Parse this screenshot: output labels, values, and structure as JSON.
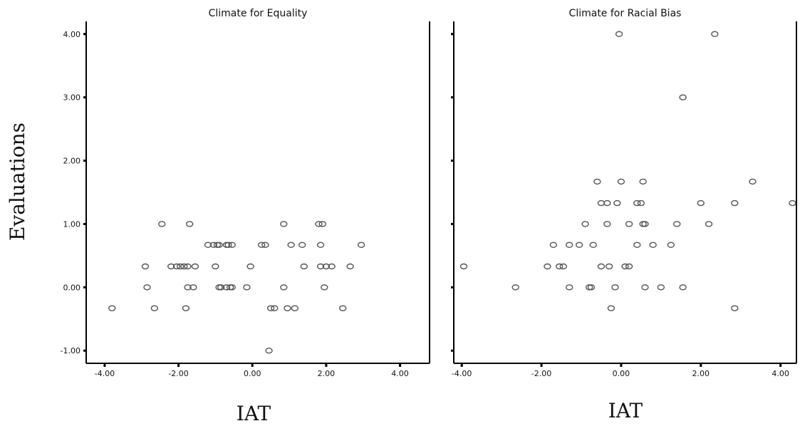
{
  "y_axis_title": "Evaluations",
  "x_axis_title": "IAT",
  "chart_data": [
    {
      "type": "scatter",
      "title": "Climate for Equality",
      "xlabel": "IAT",
      "ylabel": "Evaluations",
      "xlim": [
        -4.5,
        4.8
      ],
      "ylim": [
        -1.2,
        4.2
      ],
      "x_ticks": [
        -4,
        -2,
        0,
        2,
        4
      ],
      "y_ticks": [
        -1,
        0,
        1,
        2,
        3,
        4
      ],
      "x_tick_labels": [
        "-4.00",
        "-2.00",
        "0.00",
        "2.00",
        "4.00"
      ],
      "y_tick_labels": [
        "-1.00",
        "0.00",
        "1.00",
        "2.00",
        "3.00",
        "4.00"
      ],
      "points": [
        [
          -3.8,
          -0.33
        ],
        [
          -2.9,
          0.33
        ],
        [
          -2.85,
          0.0
        ],
        [
          -2.65,
          -0.33
        ],
        [
          -2.45,
          1.0
        ],
        [
          -2.2,
          0.33
        ],
        [
          -2.05,
          0.33
        ],
        [
          -1.95,
          0.33
        ],
        [
          -1.85,
          0.33
        ],
        [
          -1.8,
          -0.33
        ],
        [
          -1.75,
          0.33
        ],
        [
          -1.75,
          0.0
        ],
        [
          -1.7,
          1.0
        ],
        [
          -1.6,
          0.0
        ],
        [
          -1.55,
          0.33
        ],
        [
          -1.2,
          0.67
        ],
        [
          -1.05,
          0.67
        ],
        [
          -1.0,
          0.33
        ],
        [
          -0.95,
          0.67
        ],
        [
          -0.9,
          0.67
        ],
        [
          -0.9,
          0.0
        ],
        [
          -0.85,
          0.0
        ],
        [
          -0.7,
          0.67
        ],
        [
          -0.7,
          0.0
        ],
        [
          -0.65,
          0.67
        ],
        [
          -0.6,
          0.0
        ],
        [
          -0.55,
          0.67
        ],
        [
          -0.55,
          0.0
        ],
        [
          -0.15,
          0.0
        ],
        [
          -0.05,
          0.33
        ],
        [
          0.25,
          0.67
        ],
        [
          0.35,
          0.67
        ],
        [
          0.45,
          -1.0
        ],
        [
          0.5,
          -0.33
        ],
        [
          0.6,
          -0.33
        ],
        [
          0.85,
          1.0
        ],
        [
          0.85,
          0.0
        ],
        [
          0.95,
          -0.33
        ],
        [
          1.05,
          0.67
        ],
        [
          1.15,
          -0.33
        ],
        [
          1.35,
          0.67
        ],
        [
          1.4,
          0.33
        ],
        [
          1.8,
          1.0
        ],
        [
          1.85,
          0.67
        ],
        [
          1.85,
          0.33
        ],
        [
          1.9,
          1.0
        ],
        [
          1.95,
          0.0
        ],
        [
          2.0,
          0.33
        ],
        [
          2.15,
          0.33
        ],
        [
          2.45,
          -0.33
        ],
        [
          2.65,
          0.33
        ],
        [
          2.95,
          0.67
        ]
      ]
    },
    {
      "type": "scatter",
      "title": "Climate for Racial Bias",
      "xlabel": "IAT",
      "ylabel": "",
      "xlim": [
        -4.2,
        4.4
      ],
      "ylim": [
        -1.2,
        4.2
      ],
      "x_ticks": [
        -4,
        -2,
        0,
        2,
        4
      ],
      "y_ticks": [
        -1,
        0,
        1,
        2,
        3,
        4
      ],
      "x_tick_labels": [
        "-4.00",
        "-2.00",
        "0.00",
        "2.00",
        "4.00"
      ],
      "y_tick_labels": [
        "",
        "",
        "",
        "",
        "",
        ""
      ],
      "points": [
        [
          -3.95,
          0.33
        ],
        [
          -2.65,
          0.0
        ],
        [
          -1.85,
          0.33
        ],
        [
          -1.7,
          0.67
        ],
        [
          -1.55,
          0.33
        ],
        [
          -1.45,
          0.33
        ],
        [
          -1.3,
          0.67
        ],
        [
          -1.3,
          0.0
        ],
        [
          -1.05,
          0.67
        ],
        [
          -0.9,
          1.0
        ],
        [
          -0.8,
          0.0
        ],
        [
          -0.75,
          0.0
        ],
        [
          -0.7,
          0.67
        ],
        [
          -0.6,
          1.67
        ],
        [
          -0.5,
          1.33
        ],
        [
          -0.5,
          0.33
        ],
        [
          -0.35,
          1.33
        ],
        [
          -0.35,
          1.0
        ],
        [
          -0.3,
          0.33
        ],
        [
          -0.25,
          -0.33
        ],
        [
          -0.15,
          0.0
        ],
        [
          -0.1,
          1.33
        ],
        [
          -0.05,
          4.0
        ],
        [
          0.0,
          1.67
        ],
        [
          0.1,
          0.33
        ],
        [
          0.2,
          1.0
        ],
        [
          0.2,
          0.33
        ],
        [
          0.4,
          1.33
        ],
        [
          0.4,
          0.67
        ],
        [
          0.5,
          1.33
        ],
        [
          0.55,
          1.67
        ],
        [
          0.55,
          1.0
        ],
        [
          0.6,
          1.0
        ],
        [
          0.6,
          0.0
        ],
        [
          0.8,
          0.67
        ],
        [
          1.0,
          0.0
        ],
        [
          1.25,
          0.67
        ],
        [
          1.4,
          1.0
        ],
        [
          1.55,
          3.0
        ],
        [
          1.55,
          0.0
        ],
        [
          2.0,
          1.33
        ],
        [
          2.2,
          1.0
        ],
        [
          2.35,
          4.0
        ],
        [
          2.85,
          1.33
        ],
        [
          2.85,
          -0.33
        ],
        [
          3.3,
          1.67
        ],
        [
          4.3,
          1.33
        ]
      ]
    }
  ]
}
